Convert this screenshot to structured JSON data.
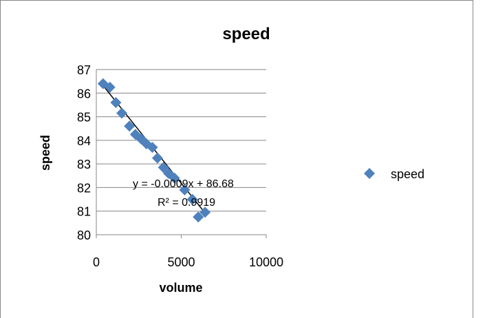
{
  "chart_data": {
    "type": "scatter",
    "title": "speed",
    "xlabel": "volume",
    "ylabel": "speed",
    "xlim": [
      0,
      10000
    ],
    "ylim": [
      80,
      87
    ],
    "x_ticks": [
      "0",
      "5000",
      "10000"
    ],
    "y_ticks": [
      "80",
      "81",
      "82",
      "83",
      "84",
      "85",
      "86",
      "87"
    ],
    "grid": "horizontal",
    "legend": {
      "position": "right",
      "entries": [
        "speed"
      ]
    },
    "series": [
      {
        "name": "speed",
        "color": "#4f81bd",
        "marker": "diamond",
        "x": [
          400,
          800,
          1150,
          1500,
          1950,
          2300,
          2650,
          2950,
          3300,
          3600,
          3950,
          4250,
          4600,
          5200,
          5650,
          6000,
          6400
        ],
        "y": [
          86.4,
          86.25,
          85.6,
          85.15,
          84.6,
          84.25,
          84.05,
          83.85,
          83.7,
          83.25,
          82.85,
          82.6,
          82.4,
          81.9,
          81.5,
          80.75,
          80.95
        ]
      }
    ],
    "trendline": {
      "type": "linear",
      "slope": -0.0009,
      "intercept": 86.68,
      "x_range": [
        400,
        6400
      ],
      "equation": "y = -0.0009x + 86.68",
      "r_squared": "R² = 0.9919"
    }
  }
}
